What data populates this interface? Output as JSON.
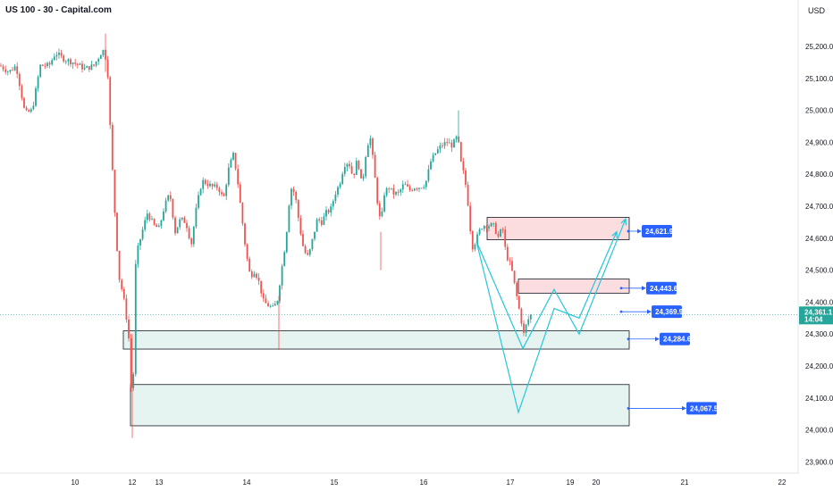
{
  "header": {
    "title": "US 100 - 30 - Capital.com",
    "currency": "USD"
  },
  "chart_data": {
    "type": "candlestick",
    "ylim": [
      23875,
      25300
    ],
    "y_ticks": [
      "25,200.0",
      "25,100.0",
      "25,000.0",
      "24,900.0",
      "24,800.0",
      "24,700.0",
      "24,600.0",
      "24,500.0",
      "24,400.0",
      "24,300.0",
      "24,200.0",
      "24,100.0",
      "24,000.0",
      "23,900.0"
    ],
    "x_ticks": [
      "10",
      "12",
      "13",
      "14",
      "15",
      "16",
      "17",
      "19",
      "20",
      "21",
      "22"
    ],
    "colors": {
      "up": "#26a69a",
      "down": "#ef5350",
      "zone_green": "#e6f4f1",
      "zone_red": "#fbdde0",
      "label": "#2962ff",
      "path": "#26c6da",
      "current": "#26a69a"
    },
    "candle_path": [
      [
        0,
        25140
      ],
      [
        10,
        25120
      ],
      [
        18,
        25140
      ],
      [
        28,
        24990
      ],
      [
        36,
        25000
      ],
      [
        45,
        25140
      ],
      [
        55,
        25140
      ],
      [
        62,
        25180
      ],
      [
        72,
        25160
      ],
      [
        82,
        25150
      ],
      [
        95,
        25130
      ],
      [
        105,
        25140
      ],
      [
        115,
        25190
      ],
      [
        120,
        25150
      ],
      [
        124,
        24900
      ],
      [
        128,
        24700
      ],
      [
        133,
        24480
      ],
      [
        138,
        24420
      ],
      [
        142,
        24340
      ],
      [
        145,
        24260
      ],
      [
        148,
        24020
      ],
      [
        152,
        24540
      ],
      [
        158,
        24610
      ],
      [
        165,
        24680
      ],
      [
        172,
        24640
      ],
      [
        178,
        24630
      ],
      [
        184,
        24700
      ],
      [
        190,
        24740
      ],
      [
        196,
        24620
      ],
      [
        202,
        24660
      ],
      [
        208,
        24650
      ],
      [
        214,
        24580
      ],
      [
        220,
        24700
      ],
      [
        226,
        24780
      ],
      [
        232,
        24770
      ],
      [
        238,
        24760
      ],
      [
        244,
        24760
      ],
      [
        250,
        24720
      ],
      [
        256,
        24820
      ],
      [
        261,
        24860
      ],
      [
        265,
        24800
      ],
      [
        270,
        24680
      ],
      [
        275,
        24560
      ],
      [
        280,
        24480
      ],
      [
        285,
        24500
      ],
      [
        290,
        24460
      ],
      [
        295,
        24400
      ],
      [
        300,
        24390
      ],
      [
        305,
        24380
      ],
      [
        310,
        24400
      ],
      [
        315,
        24500
      ],
      [
        320,
        24600
      ],
      [
        325,
        24760
      ],
      [
        330,
        24740
      ],
      [
        335,
        24640
      ],
      [
        340,
        24560
      ],
      [
        345,
        24540
      ],
      [
        350,
        24600
      ],
      [
        355,
        24660
      ],
      [
        360,
        24650
      ],
      [
        365,
        24680
      ],
      [
        370,
        24690
      ],
      [
        375,
        24740
      ],
      [
        380,
        24770
      ],
      [
        385,
        24830
      ],
      [
        390,
        24840
      ],
      [
        395,
        24790
      ],
      [
        400,
        24850
      ],
      [
        405,
        24760
      ],
      [
        410,
        24880
      ],
      [
        414,
        24920
      ],
      [
        418,
        24830
      ],
      [
        422,
        24720
      ],
      [
        426,
        24640
      ],
      [
        430,
        24740
      ],
      [
        435,
        24760
      ],
      [
        440,
        24740
      ],
      [
        446,
        24740
      ],
      [
        452,
        24770
      ],
      [
        458,
        24750
      ],
      [
        464,
        24760
      ],
      [
        470,
        24760
      ],
      [
        476,
        24770
      ],
      [
        482,
        24840
      ],
      [
        488,
        24870
      ],
      [
        494,
        24890
      ],
      [
        500,
        24900
      ],
      [
        506,
        24890
      ],
      [
        512,
        24920
      ],
      [
        516,
        24830
      ],
      [
        520,
        24790
      ],
      [
        524,
        24700
      ],
      [
        528,
        24570
      ],
      [
        532,
        24590
      ],
      [
        536,
        24620
      ],
      [
        540,
        24640
      ],
      [
        546,
        24640
      ],
      [
        552,
        24640
      ],
      [
        558,
        24600
      ],
      [
        562,
        24640
      ],
      [
        566,
        24550
      ],
      [
        572,
        24510
      ],
      [
        578,
        24420
      ],
      [
        582,
        24360
      ],
      [
        586,
        24300
      ],
      [
        590,
        24340
      ],
      [
        594,
        24360
      ]
    ],
    "last_price": "24,361.1",
    "countdown": "14:04",
    "levels": [
      {
        "value": "24,621.9",
        "price": 24621.9
      },
      {
        "value": "24,443.6",
        "price": 24443.6
      },
      {
        "value": "24,369.9",
        "price": 24369.9
      },
      {
        "value": "24,284.6",
        "price": 24284.6
      },
      {
        "value": "24,067.5",
        "price": 24067.5
      }
    ],
    "zones": [
      {
        "kind": "red",
        "from": 24595,
        "to": 24665
      },
      {
        "kind": "red",
        "from": 24428,
        "to": 24472
      },
      {
        "kind": "green",
        "from": 24253,
        "to": 24310
      },
      {
        "kind": "green",
        "from": 24013,
        "to": 24142
      }
    ],
    "projection_a": [
      [
        533,
        24590
      ],
      [
        585,
        24255
      ],
      [
        620,
        24440
      ],
      [
        648,
        24300
      ],
      [
        700,
        24660
      ]
    ],
    "projection_b": [
      [
        533,
        24590
      ],
      [
        580,
        24055
      ],
      [
        620,
        24380
      ],
      [
        648,
        24350
      ],
      [
        690,
        24620
      ]
    ]
  }
}
